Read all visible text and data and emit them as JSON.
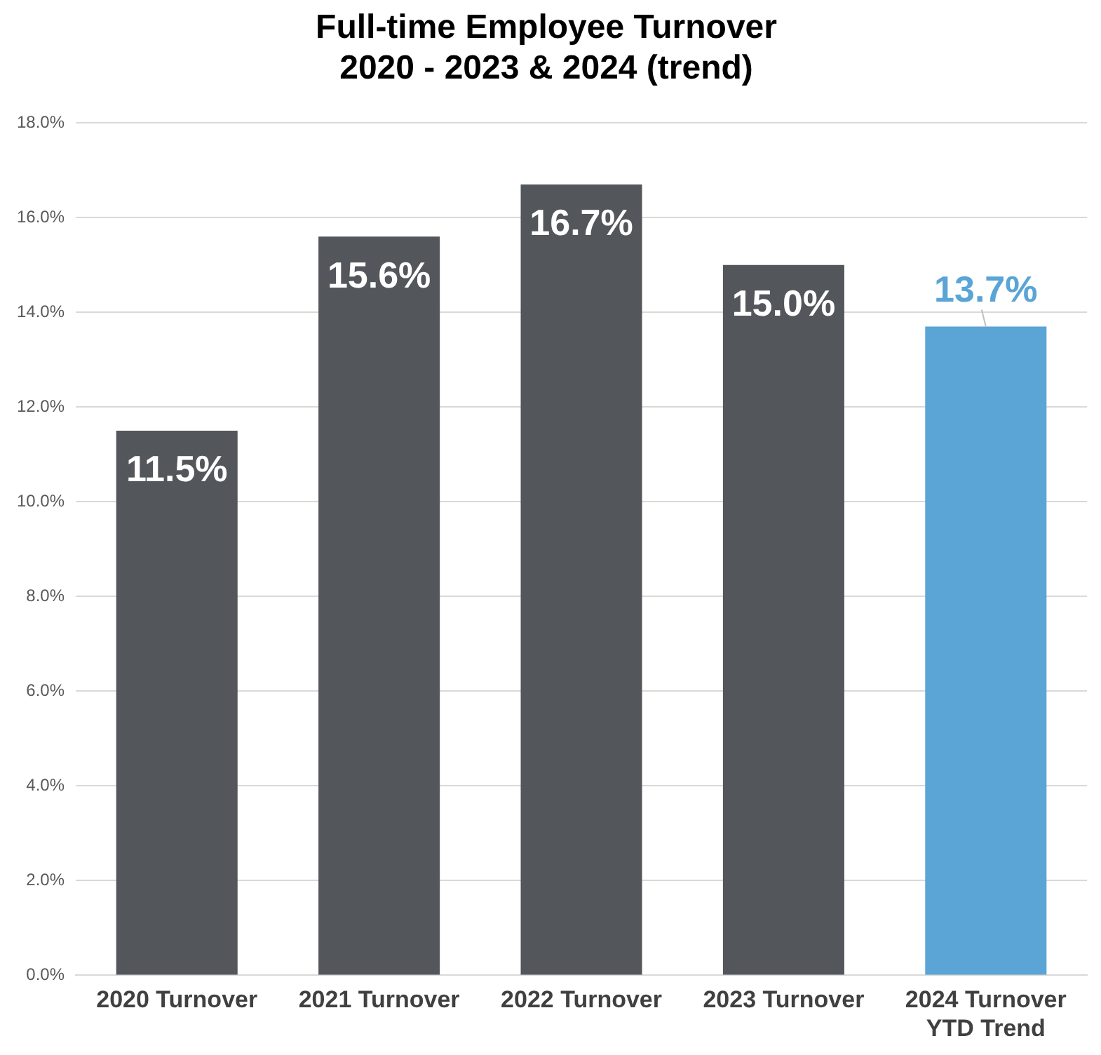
{
  "chart_data": {
    "type": "bar",
    "title": "Full-time Employee Turnover\n2020 - 2023 & 2024 (trend)",
    "categories": [
      "2020 Turnover",
      "2021 Turnover",
      "2022 Turnover",
      "2023 Turnover",
      "2024 Turnover\nYTD Trend"
    ],
    "values": [
      11.5,
      15.6,
      16.7,
      15.0,
      13.7
    ],
    "colors": [
      "#53565a",
      "#53565a",
      "#53565a",
      "#53565a",
      "#5aa4d6"
    ],
    "value_labels": [
      "11.5%",
      "15.6%",
      "16.7%",
      "15.0%",
      "13.7%"
    ],
    "ylim": [
      0,
      18
    ],
    "yticks": [
      {
        "value": 0,
        "label": "0.0%"
      },
      {
        "value": 2,
        "label": "2.0%"
      },
      {
        "value": 4,
        "label": "4.0%"
      },
      {
        "value": 6,
        "label": "6.0%"
      },
      {
        "value": 8,
        "label": "8.0%"
      },
      {
        "value": 10,
        "label": "10.0%"
      },
      {
        "value": 12,
        "label": "12.0%"
      },
      {
        "value": 14,
        "label": "14.0%"
      },
      {
        "value": 16,
        "label": "16.0%"
      },
      {
        "value": 18,
        "label": "18.0%"
      }
    ],
    "grid": "y",
    "legend": false
  }
}
